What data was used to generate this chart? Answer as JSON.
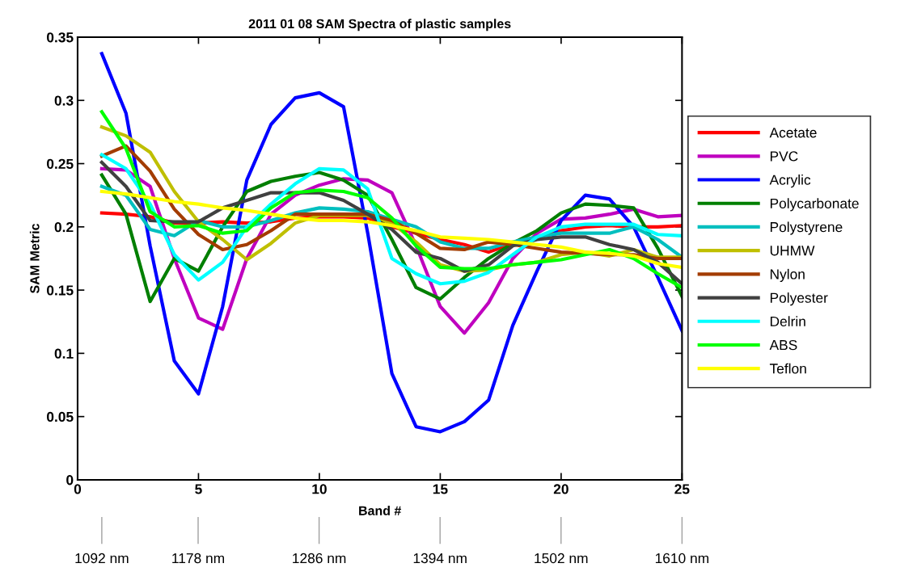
{
  "chart_data": {
    "type": "line",
    "title": "2011 01 08 SAM Spectra of plastic samples",
    "xlabel": "Band #",
    "ylabel": "SAM Metric",
    "x": [
      1,
      2,
      3,
      4,
      5,
      6,
      7,
      8,
      9,
      10,
      11,
      12,
      13,
      14,
      15,
      16,
      17,
      18,
      19,
      20,
      21,
      22,
      23,
      24,
      25
    ],
    "series": [
      {
        "name": "Acetate",
        "color": "#ff0000",
        "values": [
          0.211,
          0.21,
          0.208,
          0.203,
          0.203,
          0.204,
          0.203,
          0.204,
          0.207,
          0.208,
          0.208,
          0.207,
          0.2,
          0.195,
          0.19,
          0.186,
          0.18,
          0.187,
          0.192,
          0.197,
          0.2,
          0.201,
          0.2,
          0.2,
          0.201
        ]
      },
      {
        "name": "PVC",
        "color": "#bf00bf",
        "values": [
          0.246,
          0.245,
          0.232,
          0.175,
          0.128,
          0.119,
          0.175,
          0.21,
          0.225,
          0.233,
          0.238,
          0.237,
          0.227,
          0.185,
          0.137,
          0.116,
          0.14,
          0.175,
          0.195,
          0.206,
          0.207,
          0.21,
          0.214,
          0.208,
          0.209
        ]
      },
      {
        "name": "Acrylic",
        "color": "#0000ff",
        "values": [
          0.337,
          0.29,
          0.185,
          0.094,
          0.068,
          0.137,
          0.237,
          0.281,
          0.302,
          0.306,
          0.295,
          0.195,
          0.084,
          0.042,
          0.038,
          0.046,
          0.063,
          0.122,
          0.165,
          0.205,
          0.225,
          0.222,
          0.2,
          0.16,
          0.118
        ]
      },
      {
        "name": "Polycarbonate",
        "color": "#007f00",
        "values": [
          0.241,
          0.21,
          0.141,
          0.175,
          0.165,
          0.2,
          0.228,
          0.236,
          0.24,
          0.243,
          0.237,
          0.225,
          0.19,
          0.152,
          0.143,
          0.16,
          0.175,
          0.187,
          0.197,
          0.211,
          0.218,
          0.217,
          0.215,
          0.183,
          0.145
        ]
      },
      {
        "name": "Polystyrene",
        "color": "#00bfbf",
        "values": [
          0.232,
          0.225,
          0.198,
          0.193,
          0.205,
          0.2,
          0.2,
          0.205,
          0.211,
          0.215,
          0.214,
          0.212,
          0.206,
          0.2,
          0.188,
          0.183,
          0.183,
          0.188,
          0.192,
          0.195,
          0.195,
          0.195,
          0.2,
          0.19,
          0.176
        ]
      },
      {
        "name": "UHMW",
        "color": "#bfbf00",
        "values": [
          0.279,
          0.272,
          0.259,
          0.228,
          0.204,
          0.19,
          0.174,
          0.187,
          0.203,
          0.209,
          0.209,
          0.209,
          0.203,
          0.188,
          0.17,
          0.165,
          0.166,
          0.17,
          0.172,
          0.178,
          0.18,
          0.177,
          0.182,
          0.176,
          0.176
        ]
      },
      {
        "name": "Nylon",
        "color": "#a33c00",
        "values": [
          0.256,
          0.264,
          0.244,
          0.214,
          0.194,
          0.182,
          0.186,
          0.197,
          0.21,
          0.21,
          0.21,
          0.21,
          0.205,
          0.195,
          0.183,
          0.182,
          0.188,
          0.186,
          0.183,
          0.18,
          0.179,
          0.178,
          0.178,
          0.175,
          0.175
        ]
      },
      {
        "name": "Polyester",
        "color": "#404040",
        "values": [
          0.251,
          0.232,
          0.205,
          0.204,
          0.204,
          0.215,
          0.221,
          0.227,
          0.227,
          0.227,
          0.221,
          0.21,
          0.198,
          0.18,
          0.175,
          0.165,
          0.17,
          0.185,
          0.19,
          0.192,
          0.192,
          0.186,
          0.182,
          0.172,
          0.155
        ]
      },
      {
        "name": "Delrin",
        "color": "#00ffff",
        "values": [
          0.257,
          0.246,
          0.218,
          0.178,
          0.158,
          0.172,
          0.2,
          0.218,
          0.234,
          0.246,
          0.245,
          0.23,
          0.175,
          0.163,
          0.155,
          0.157,
          0.164,
          0.178,
          0.192,
          0.2,
          0.202,
          0.202,
          0.202,
          0.194,
          0.193
        ]
      },
      {
        "name": "ABS",
        "color": "#00ff00",
        "values": [
          0.291,
          0.262,
          0.212,
          0.2,
          0.201,
          0.195,
          0.197,
          0.215,
          0.227,
          0.229,
          0.228,
          0.223,
          0.207,
          0.185,
          0.168,
          0.167,
          0.167,
          0.17,
          0.172,
          0.174,
          0.178,
          0.182,
          0.175,
          0.163,
          0.152
        ]
      },
      {
        "name": "Teflon",
        "color": "#ffff00",
        "values": [
          0.228,
          0.226,
          0.223,
          0.22,
          0.218,
          0.215,
          0.213,
          0.21,
          0.207,
          0.205,
          0.205,
          0.204,
          0.201,
          0.197,
          0.192,
          0.191,
          0.19,
          0.188,
          0.186,
          0.184,
          0.18,
          0.179,
          0.177,
          0.171,
          0.168
        ]
      }
    ],
    "xlim": [
      0,
      25
    ],
    "xticks": [
      0,
      5,
      10,
      15,
      20,
      25
    ],
    "ylim": [
      0,
      0.35
    ],
    "yticks": [
      0,
      0.05,
      0.1,
      0.15,
      0.2,
      0.25,
      0.3,
      0.35
    ],
    "x2lim": [
      1070.4,
      1610
    ],
    "x2ticks": [
      {
        "value": 1092,
        "label": "1092 nm"
      },
      {
        "value": 1178,
        "label": "1178 nm"
      },
      {
        "value": 1286,
        "label": "1286 nm"
      },
      {
        "value": 1394,
        "label": "1394 nm"
      },
      {
        "value": 1502,
        "label": "1502 nm"
      },
      {
        "value": 1610,
        "label": "1610 nm"
      }
    ],
    "legend": "right",
    "grid": false,
    "marker": "none",
    "line_style": "solid"
  }
}
